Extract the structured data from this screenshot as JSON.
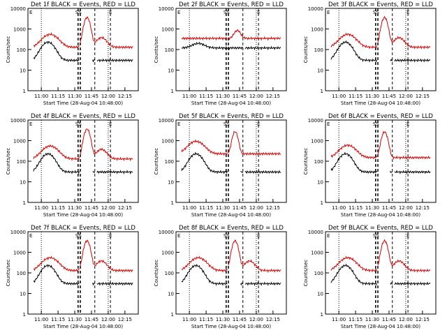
{
  "chart_data": [
    {
      "title": "Det 1f BLACK = Events, RED = LLD",
      "ylabel": "Counts/sec",
      "xlabel": "Start Time (28-Aug-04 10:48:00)",
      "type": "line",
      "series": [
        {
          "color": "#000000",
          "key": "black"
        },
        {
          "color": "#dd0000",
          "key": "red"
        }
      ],
      "xlim": [
        "10:48",
        "12:27"
      ],
      "ylim": [
        1,
        10000
      ],
      "xticks": [
        "11:00",
        "11:15",
        "11:30",
        "11:45",
        "12:00",
        "12:15"
      ],
      "yticks": [
        "1",
        "10",
        "100",
        "1000",
        "10000"
      ],
      "annotations": [
        "E",
        "SS",
        "E"
      ],
      "event_times": [
        "11:33",
        "11:35",
        "11:48",
        "12:02"
      ]
    },
    {
      "title": "Det 2f BLACK = Events, RED = LLD",
      "ylabel": "Counts/sec",
      "xlabel": "Start Time (28-Aug-04 10:48:00)",
      "type": "line",
      "series": [
        {
          "color": "#000000",
          "key": "black"
        },
        {
          "color": "#dd0000",
          "key": "red"
        }
      ],
      "xlim": [
        "10:48",
        "12:27"
      ],
      "ylim": [
        1,
        10000
      ],
      "xticks": [
        "11:00",
        "11:15",
        "11:30",
        "11:45",
        "12:00",
        "12:15"
      ],
      "yticks": [
        "1",
        "10",
        "100",
        "1000",
        "10000"
      ],
      "annotations": [
        "E",
        "SS",
        "E"
      ],
      "event_times": [
        "11:33",
        "11:35",
        "11:48",
        "12:02"
      ]
    },
    {
      "title": "Det 3f BLACK = Events, RED = LLD",
      "ylabel": "Counts/sec",
      "xlabel": "Start Time (28-Aug-04 10:48:00)",
      "type": "line",
      "series": [
        {
          "color": "#000000",
          "key": "black"
        },
        {
          "color": "#dd0000",
          "key": "red"
        }
      ],
      "xlim": [
        "10:48",
        "12:27"
      ],
      "ylim": [
        1,
        10000
      ],
      "xticks": [
        "11:00",
        "11:15",
        "11:30",
        "11:45",
        "12:00",
        "12:15"
      ],
      "yticks": [
        "1",
        "10",
        "100",
        "1000",
        "10000"
      ],
      "annotations": [
        "E",
        "SS",
        "E"
      ],
      "event_times": [
        "11:33",
        "11:35",
        "11:48",
        "12:02"
      ]
    },
    {
      "title": "Det 4f BLACK = Events, RED = LLD",
      "ylabel": "Counts/sec",
      "xlabel": "Start Time (28-Aug-04 10:48:00)",
      "type": "line",
      "series": [
        {
          "color": "#000000",
          "key": "black"
        },
        {
          "color": "#dd0000",
          "key": "red"
        }
      ],
      "xlim": [
        "10:48",
        "12:27"
      ],
      "ylim": [
        1,
        10000
      ],
      "xticks": [
        "11:00",
        "11:15",
        "11:30",
        "11:45",
        "12:00",
        "12:15"
      ],
      "yticks": [
        "1",
        "10",
        "100",
        "1000",
        "10000"
      ],
      "annotations": [
        "E",
        "SS",
        "E"
      ],
      "event_times": [
        "11:33",
        "11:35",
        "11:48",
        "12:02"
      ]
    },
    {
      "title": "Det 5f BLACK = Events, RED = LLD",
      "ylabel": "Counts/sec",
      "xlabel": "Start Time (28-Aug-04 10:48:00)",
      "type": "line",
      "series": [
        {
          "color": "#000000",
          "key": "black"
        },
        {
          "color": "#dd0000",
          "key": "red"
        }
      ],
      "xlim": [
        "10:48",
        "12:27"
      ],
      "ylim": [
        1,
        10000
      ],
      "xticks": [
        "11:00",
        "11:15",
        "11:30",
        "11:45",
        "12:00",
        "12:15"
      ],
      "yticks": [
        "1",
        "10",
        "100",
        "1000",
        "10000"
      ],
      "annotations": [
        "E",
        "SS",
        "E"
      ],
      "event_times": [
        "11:33",
        "11:35",
        "11:48",
        "12:02"
      ]
    },
    {
      "title": "Det 6f BLACK = Events, RED = LLD",
      "ylabel": "Counts/sec",
      "xlabel": "Start Time (28-Aug-04 10:48:00)",
      "type": "line",
      "series": [
        {
          "color": "#000000",
          "key": "black"
        },
        {
          "color": "#dd0000",
          "key": "red"
        }
      ],
      "xlim": [
        "10:48",
        "12:27"
      ],
      "ylim": [
        1,
        10000
      ],
      "xticks": [
        "11:00",
        "11:15",
        "11:30",
        "11:45",
        "12:00",
        "12:15"
      ],
      "yticks": [
        "1",
        "10",
        "100",
        "1000",
        "10000"
      ],
      "annotations": [
        "E",
        "SS",
        "E"
      ],
      "event_times": [
        "11:33",
        "11:35",
        "11:48",
        "12:02"
      ]
    },
    {
      "title": "Det 7f BLACK = Events, RED = LLD",
      "ylabel": "Counts/sec",
      "xlabel": "Start Time (28-Aug-04 10:48:00)",
      "type": "line",
      "series": [
        {
          "color": "#000000",
          "key": "black"
        },
        {
          "color": "#dd0000",
          "key": "red"
        }
      ],
      "xlim": [
        "10:48",
        "12:27"
      ],
      "ylim": [
        1,
        10000
      ],
      "xticks": [
        "11:00",
        "11:15",
        "11:30",
        "11:45",
        "12:00",
        "12:15"
      ],
      "yticks": [
        "1",
        "10",
        "100",
        "1000",
        "10000"
      ],
      "annotations": [
        "E",
        "SS",
        "E"
      ],
      "event_times": [
        "11:33",
        "11:35",
        "11:48",
        "12:02"
      ]
    },
    {
      "title": "Det 8f BLACK = Events, RED = LLD",
      "ylabel": "Counts/sec",
      "xlabel": "Start Time (28-Aug-04 10:48:00)",
      "type": "line",
      "series": [
        {
          "color": "#000000",
          "key": "black"
        },
        {
          "color": "#dd0000",
          "key": "red"
        }
      ],
      "xlim": [
        "10:48",
        "12:27"
      ],
      "ylim": [
        1,
        10000
      ],
      "xticks": [
        "11:00",
        "11:15",
        "11:30",
        "11:45",
        "12:00",
        "12:15"
      ],
      "yticks": [
        "1",
        "10",
        "100",
        "1000",
        "10000"
      ],
      "annotations": [
        "E",
        "SS",
        "E"
      ],
      "event_times": [
        "11:33",
        "11:35",
        "11:48",
        "12:02"
      ]
    },
    {
      "title": "Det 9f BLACK = Events, RED = LLD",
      "ylabel": "Counts/sec",
      "xlabel": "Start Time (28-Aug-04 10:48:00)",
      "type": "line",
      "series": [
        {
          "color": "#000000",
          "key": "black"
        },
        {
          "color": "#dd0000",
          "key": "red"
        }
      ],
      "xlim": [
        "10:48",
        "12:27"
      ],
      "ylim": [
        1,
        10000
      ],
      "xticks": [
        "11:00",
        "11:15",
        "11:30",
        "11:45",
        "12:00",
        "12:15"
      ],
      "yticks": [
        "1",
        "10",
        "100",
        "1000",
        "10000"
      ],
      "annotations": [
        "E",
        "SS",
        "E"
      ],
      "event_times": [
        "11:33",
        "11:35",
        "11:48",
        "12:02"
      ]
    }
  ]
}
